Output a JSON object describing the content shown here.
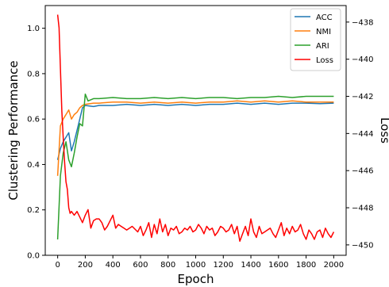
{
  "chart_data": {
    "type": "line",
    "xlabel": "Epoch",
    "ylabel_left": "Clustering Performance",
    "ylabel_right": "Loss",
    "xlim": [
      -90,
      2090
    ],
    "ylim_left": [
      0.0,
      1.1
    ],
    "ylim_right": [
      -450.56,
      -437.11
    ],
    "x_ticks": [
      0,
      200,
      400,
      600,
      800,
      1000,
      1200,
      1400,
      1600,
      1800,
      2000
    ],
    "y_ticks_left": [
      0.0,
      0.2,
      0.4,
      0.6,
      0.8,
      1.0
    ],
    "y_ticks_right": [
      -450,
      -448,
      -446,
      -444,
      -442,
      -440,
      -438
    ],
    "grid": false,
    "legend_position": "top-right",
    "series": [
      {
        "name": "ACC",
        "axis": "left",
        "color": "#1f77b4",
        "x": [
          0,
          20,
          40,
          60,
          80,
          100,
          120,
          140,
          160,
          180,
          200,
          260,
          300,
          400,
          500,
          600,
          700,
          800,
          900,
          1000,
          1100,
          1200,
          1300,
          1400,
          1500,
          1600,
          1700,
          1800,
          1900,
          2000
        ],
        "y": [
          0.42,
          0.47,
          0.5,
          0.52,
          0.54,
          0.46,
          0.5,
          0.55,
          0.6,
          0.65,
          0.66,
          0.655,
          0.66,
          0.66,
          0.665,
          0.66,
          0.665,
          0.66,
          0.665,
          0.66,
          0.665,
          0.665,
          0.67,
          0.665,
          0.67,
          0.665,
          0.67,
          0.67,
          0.668,
          0.67
        ]
      },
      {
        "name": "NMI",
        "axis": "left",
        "color": "#ff7f0e",
        "x": [
          0,
          20,
          40,
          60,
          80,
          100,
          120,
          140,
          160,
          180,
          200,
          260,
          300,
          400,
          500,
          600,
          700,
          800,
          900,
          1000,
          1100,
          1200,
          1300,
          1400,
          1500,
          1600,
          1700,
          1800,
          1900,
          2000
        ],
        "y": [
          0.35,
          0.57,
          0.6,
          0.62,
          0.64,
          0.6,
          0.62,
          0.63,
          0.65,
          0.66,
          0.665,
          0.67,
          0.67,
          0.675,
          0.675,
          0.67,
          0.675,
          0.67,
          0.675,
          0.67,
          0.675,
          0.675,
          0.68,
          0.675,
          0.68,
          0.675,
          0.68,
          0.675,
          0.675,
          0.675
        ]
      },
      {
        "name": "ARI",
        "axis": "left",
        "color": "#2ca02c",
        "x": [
          0,
          20,
          40,
          60,
          80,
          100,
          120,
          140,
          160,
          180,
          200,
          220,
          260,
          300,
          400,
          500,
          600,
          700,
          800,
          900,
          1000,
          1100,
          1200,
          1300,
          1400,
          1500,
          1600,
          1700,
          1800,
          1900,
          2000
        ],
        "y": [
          0.07,
          0.35,
          0.45,
          0.5,
          0.42,
          0.39,
          0.45,
          0.52,
          0.58,
          0.57,
          0.71,
          0.68,
          0.69,
          0.69,
          0.695,
          0.69,
          0.69,
          0.695,
          0.69,
          0.695,
          0.69,
          0.695,
          0.695,
          0.69,
          0.695,
          0.695,
          0.7,
          0.695,
          0.7,
          0.7,
          0.7
        ]
      },
      {
        "name": "Loss",
        "axis": "right",
        "color": "#ff0000",
        "x": [
          0,
          10,
          20,
          30,
          40,
          50,
          60,
          70,
          80,
          90,
          100,
          120,
          140,
          160,
          180,
          200,
          220,
          240,
          260,
          280,
          300,
          320,
          340,
          360,
          380,
          400,
          420,
          440,
          460,
          480,
          500,
          540,
          580,
          600,
          620,
          640,
          660,
          680,
          700,
          720,
          740,
          760,
          780,
          800,
          820,
          840,
          860,
          880,
          900,
          920,
          940,
          960,
          980,
          1000,
          1020,
          1040,
          1060,
          1080,
          1100,
          1120,
          1140,
          1160,
          1180,
          1200,
          1220,
          1240,
          1260,
          1280,
          1300,
          1320,
          1340,
          1360,
          1380,
          1400,
          1420,
          1440,
          1460,
          1480,
          1500,
          1520,
          1540,
          1560,
          1580,
          1600,
          1620,
          1640,
          1660,
          1680,
          1700,
          1720,
          1740,
          1760,
          1780,
          1800,
          1820,
          1840,
          1860,
          1880,
          1900,
          1920,
          1940,
          1960,
          1980,
          2000
        ],
        "y": [
          -437.6,
          -438.3,
          -440.5,
          -442.8,
          -444.2,
          -445.5,
          -446.6,
          -447.0,
          -448.0,
          -448.3,
          -448.2,
          -448.4,
          -448.2,
          -448.5,
          -448.8,
          -448.4,
          -448.1,
          -449.1,
          -448.7,
          -448.6,
          -448.6,
          -448.8,
          -449.2,
          -449.0,
          -448.7,
          -448.4,
          -449.1,
          -448.9,
          -449.0,
          -449.1,
          -449.2,
          -449.0,
          -449.3,
          -449.0,
          -449.5,
          -449.2,
          -448.8,
          -449.6,
          -448.9,
          -449.4,
          -448.6,
          -449.3,
          -448.9,
          -449.5,
          -449.1,
          -449.2,
          -449.0,
          -449.4,
          -449.3,
          -449.1,
          -449.2,
          -449.0,
          -449.3,
          -449.2,
          -448.9,
          -449.1,
          -449.4,
          -449.0,
          -449.2,
          -449.1,
          -449.5,
          -449.3,
          -449.0,
          -449.1,
          -449.3,
          -449.2,
          -448.9,
          -449.4,
          -449.0,
          -449.8,
          -449.4,
          -449.0,
          -449.5,
          -448.6,
          -449.3,
          -449.6,
          -449.0,
          -449.4,
          -449.3,
          -449.2,
          -449.1,
          -449.4,
          -449.6,
          -449.2,
          -448.8,
          -449.5,
          -449.1,
          -449.4,
          -449.0,
          -449.3,
          -449.2,
          -448.9,
          -449.4,
          -449.7,
          -449.2,
          -449.4,
          -449.7,
          -449.3,
          -449.2,
          -449.6,
          -449.1,
          -449.4,
          -449.6,
          -449.3
        ]
      }
    ]
  }
}
